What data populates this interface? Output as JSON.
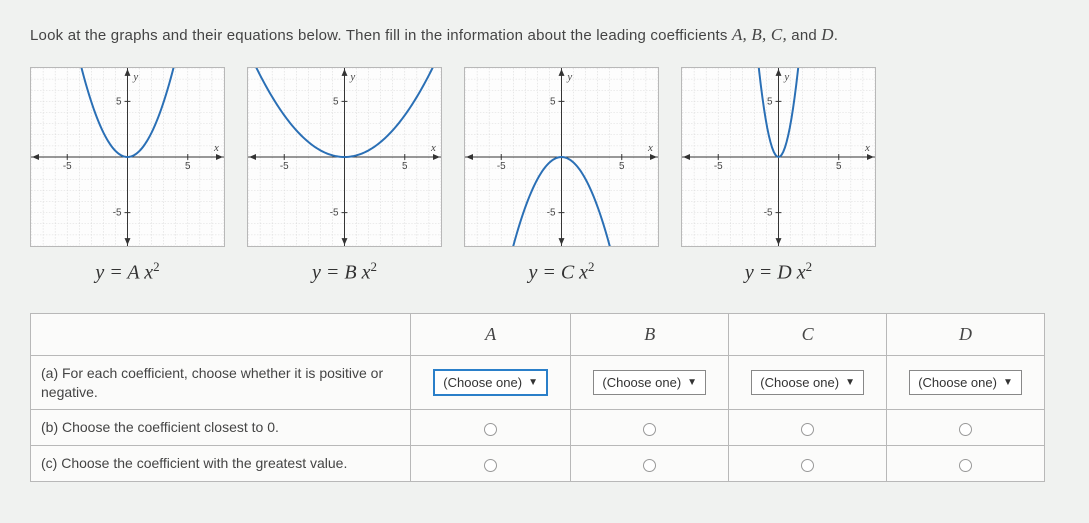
{
  "prompt": {
    "pre": "Look at the graphs and their equations below. Then fill in the information about the leading coefficients ",
    "vars": "A, B, C,",
    "and": " and ",
    "lastvar": "D",
    "post": "."
  },
  "graphs": [
    {
      "eq_pre": "y = A x",
      "eq_sup": "2",
      "type": "parabola",
      "a": 0.55,
      "h": 0,
      "k": 0,
      "xlim": [
        -8,
        8
      ],
      "ylim": [
        -8,
        8
      ],
      "x_major": 5,
      "y_major": 5,
      "curve_color": "#2a6fb5"
    },
    {
      "eq_pre": "y = B x",
      "eq_sup": "2",
      "type": "parabola",
      "a": 0.15,
      "h": 0,
      "k": 0,
      "xlim": [
        -8,
        8
      ],
      "ylim": [
        -8,
        8
      ],
      "x_major": 5,
      "y_major": 5,
      "curve_color": "#2a6fb5"
    },
    {
      "eq_pre": "y = C x",
      "eq_sup": "2",
      "type": "parabola",
      "a": -0.5,
      "h": 0,
      "k": 0,
      "xlim": [
        -8,
        8
      ],
      "ylim": [
        -8,
        8
      ],
      "x_major": 5,
      "y_major": 5,
      "curve_color": "#2a6fb5"
    },
    {
      "eq_pre": "y = D x",
      "eq_sup": "2",
      "type": "parabola",
      "a": 3.0,
      "h": 0,
      "k": 0,
      "xlim": [
        -8,
        8
      ],
      "ylim": [
        -8,
        8
      ],
      "x_major": 5,
      "y_major": 5,
      "curve_color": "#2a6fb5"
    }
  ],
  "table": {
    "headers": [
      "A",
      "B",
      "C",
      "D"
    ],
    "row_a": "(a) For each coefficient, choose whether it is positive or negative.",
    "row_b": "(b) Choose the coefficient closest to 0.",
    "row_c": "(c) Choose the coefficient with the greatest value.",
    "choose_label": "(Choose one)"
  },
  "style": {
    "bg": "#f0f2f0",
    "border": "#b8b8b8",
    "grid": "#d9d9d9",
    "axis": "#333333",
    "highlight": "#2a7fc9"
  }
}
